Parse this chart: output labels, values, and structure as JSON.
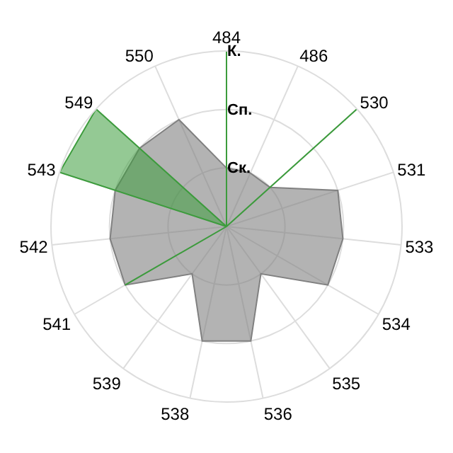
{
  "chart_data": {
    "type": "radar",
    "categories": [
      "484",
      "486",
      "530",
      "531",
      "533",
      "534",
      "535",
      "536",
      "538",
      "539",
      "541",
      "542",
      "543",
      "549",
      "550"
    ],
    "series": [
      {
        "color": "#808080",
        "values": [
          1,
          1,
          1,
          2,
          2,
          2,
          1,
          2,
          2,
          1,
          2,
          2,
          2,
          2,
          2
        ]
      },
      {
        "color": "#3c9c3c",
        "values": [
          3,
          0,
          3,
          0,
          0,
          0,
          0,
          0,
          0,
          0,
          2,
          0,
          3,
          3,
          0
        ]
      }
    ],
    "ylim": [
      0,
      3
    ],
    "yticks": [
      {
        "value": 1,
        "label": "Ск."
      },
      {
        "value": 2,
        "label": "Сп."
      },
      {
        "value": 3,
        "label": "К."
      }
    ],
    "grid": true
  }
}
